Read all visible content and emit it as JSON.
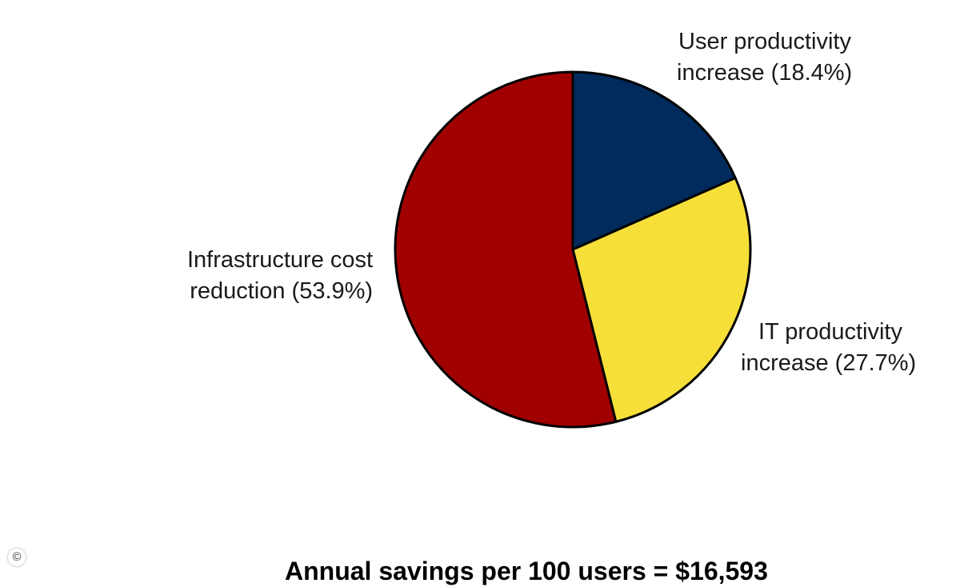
{
  "chart_data": {
    "type": "pie",
    "slices": [
      {
        "label_line1": "User productivity",
        "label_line2": "increase (18.4%)",
        "value": 18.4,
        "color": "#002b5c"
      },
      {
        "label_line1": "IT productivity",
        "label_line2": "increase (27.7%)",
        "value": 27.7,
        "color": "#f7df3a"
      },
      {
        "label_line1": "Infrastructure cost",
        "label_line2": "reduction (53.9%)",
        "value": 53.9,
        "color": "#a00000"
      }
    ],
    "caption": "Annual savings per 100 users = $16,593"
  },
  "icons": {
    "copyright": "copyright-icon",
    "copyright_glyph": "©"
  }
}
